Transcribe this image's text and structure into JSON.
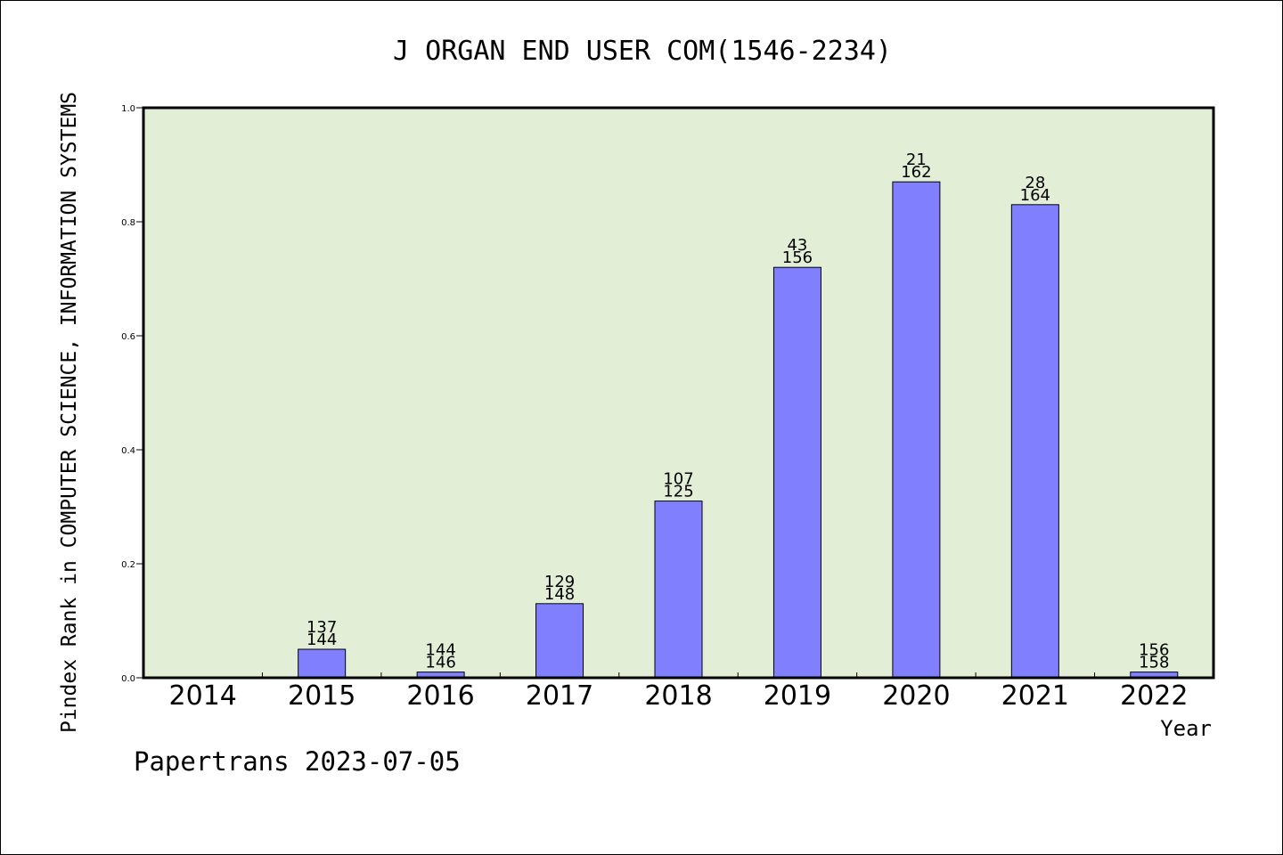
{
  "colors": {
    "plot_background": "#e2efd6",
    "bar_fill": "#8080ff",
    "bar_stroke": "#000000",
    "axis": "#000000"
  },
  "chart_data": {
    "type": "bar",
    "title": "J ORGAN END USER COM(1546-2234)",
    "xlabel": "Year",
    "ylabel": "Pindex Rank in COMPUTER SCIENCE, INFORMATION SYSTEMS",
    "ylim": [
      0,
      1.0
    ],
    "yticks": [
      "0.0",
      "0.2",
      "0.4",
      "0.6",
      "0.8",
      "1.0"
    ],
    "grid": false,
    "categories": [
      "2014",
      "2015",
      "2016",
      "2017",
      "2018",
      "2019",
      "2020",
      "2021",
      "2022"
    ],
    "values": [
      0,
      0.05,
      0.01,
      0.13,
      0.31,
      0.72,
      0.87,
      0.83,
      0.01
    ],
    "labels_top": [
      "",
      "137",
      "144",
      "129",
      "107",
      "43",
      "21",
      "28",
      "156"
    ],
    "labels_bottom": [
      "",
      "144",
      "146",
      "148",
      "125",
      "156",
      "162",
      "164",
      "158"
    ]
  },
  "footer": "Papertrans 2023-07-05"
}
